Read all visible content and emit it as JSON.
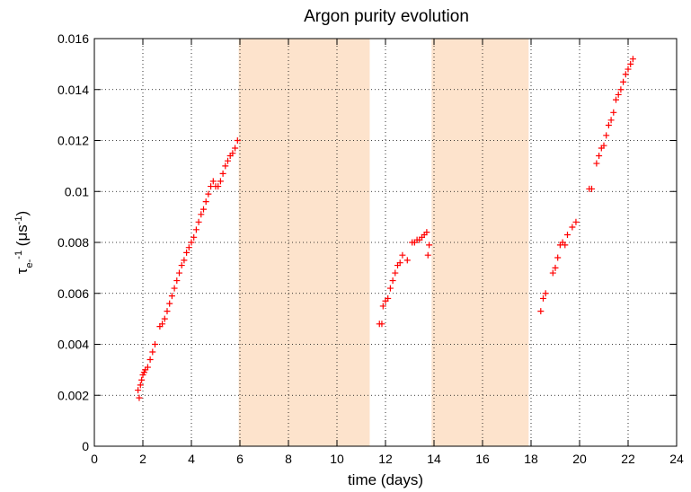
{
  "chart_data": {
    "type": "scatter",
    "title": "Argon purity evolution",
    "xlabel": "time (days)",
    "ylabel": [
      "τ",
      "e-",
      "-1",
      " (μs",
      "-1",
      ")"
    ],
    "color": "#ff0000",
    "shade_color": "#fde3cc",
    "shaded_regions": [
      [
        5.95,
        11.35
      ],
      [
        13.9,
        17.9
      ]
    ],
    "xlim": [
      0,
      24
    ],
    "xticks": [
      0,
      2,
      4,
      6,
      8,
      10,
      12,
      14,
      16,
      18,
      20,
      22,
      24
    ],
    "ylim": [
      0,
      0.016
    ],
    "yticks": [
      0,
      0.002,
      0.004,
      0.006,
      0.008,
      0.01,
      0.012,
      0.014,
      0.016
    ],
    "grid": true,
    "x": [
      1.8,
      1.85,
      1.9,
      1.95,
      2.0,
      2.05,
      2.1,
      2.2,
      2.3,
      2.4,
      2.5,
      2.7,
      2.8,
      2.9,
      3.0,
      3.1,
      3.2,
      3.3,
      3.4,
      3.5,
      3.6,
      3.7,
      3.8,
      3.9,
      4.0,
      4.1,
      4.2,
      4.3,
      4.4,
      4.5,
      4.6,
      4.7,
      4.8,
      4.9,
      5.0,
      5.1,
      5.2,
      5.3,
      5.4,
      5.5,
      5.6,
      5.7,
      5.8,
      5.9,
      11.75,
      11.85,
      11.9,
      12.0,
      12.1,
      12.2,
      12.3,
      12.4,
      12.5,
      12.6,
      12.7,
      12.9,
      13.1,
      13.2,
      13.3,
      13.4,
      13.5,
      13.6,
      13.7,
      13.75,
      13.8,
      18.4,
      18.5,
      18.6,
      18.9,
      19.0,
      19.1,
      19.2,
      19.3,
      19.4,
      19.5,
      19.7,
      19.85,
      20.4,
      20.5,
      20.7,
      20.8,
      20.9,
      21.0,
      21.1,
      21.2,
      21.3,
      21.4,
      21.5,
      21.6,
      21.7,
      21.8,
      21.9,
      22.0,
      22.1,
      22.2
    ],
    "values": [
      0.0022,
      0.0019,
      0.0024,
      0.0026,
      0.0028,
      0.0029,
      0.003,
      0.0031,
      0.0034,
      0.0037,
      0.004,
      0.0047,
      0.0048,
      0.005,
      0.0053,
      0.0056,
      0.0059,
      0.0062,
      0.0065,
      0.0068,
      0.0071,
      0.0073,
      0.0076,
      0.0078,
      0.008,
      0.0082,
      0.0085,
      0.0088,
      0.0091,
      0.0093,
      0.0096,
      0.0099,
      0.0102,
      0.0104,
      0.0102,
      0.0102,
      0.0104,
      0.0107,
      0.011,
      0.0112,
      0.0114,
      0.0115,
      0.0117,
      0.012,
      0.0048,
      0.0048,
      0.0055,
      0.0057,
      0.0058,
      0.0062,
      0.0065,
      0.0068,
      0.0071,
      0.0072,
      0.0075,
      0.0073,
      0.008,
      0.008,
      0.0081,
      0.0081,
      0.0082,
      0.0083,
      0.0084,
      0.0075,
      0.0079,
      0.0053,
      0.0058,
      0.006,
      0.0068,
      0.007,
      0.0074,
      0.0079,
      0.008,
      0.0079,
      0.0083,
      0.0086,
      0.0088,
      0.0101,
      0.0101,
      0.0111,
      0.0114,
      0.0117,
      0.0118,
      0.0122,
      0.0126,
      0.0128,
      0.0131,
      0.0136,
      0.0138,
      0.014,
      0.0143,
      0.0146,
      0.0148,
      0.015,
      0.0152
    ]
  }
}
